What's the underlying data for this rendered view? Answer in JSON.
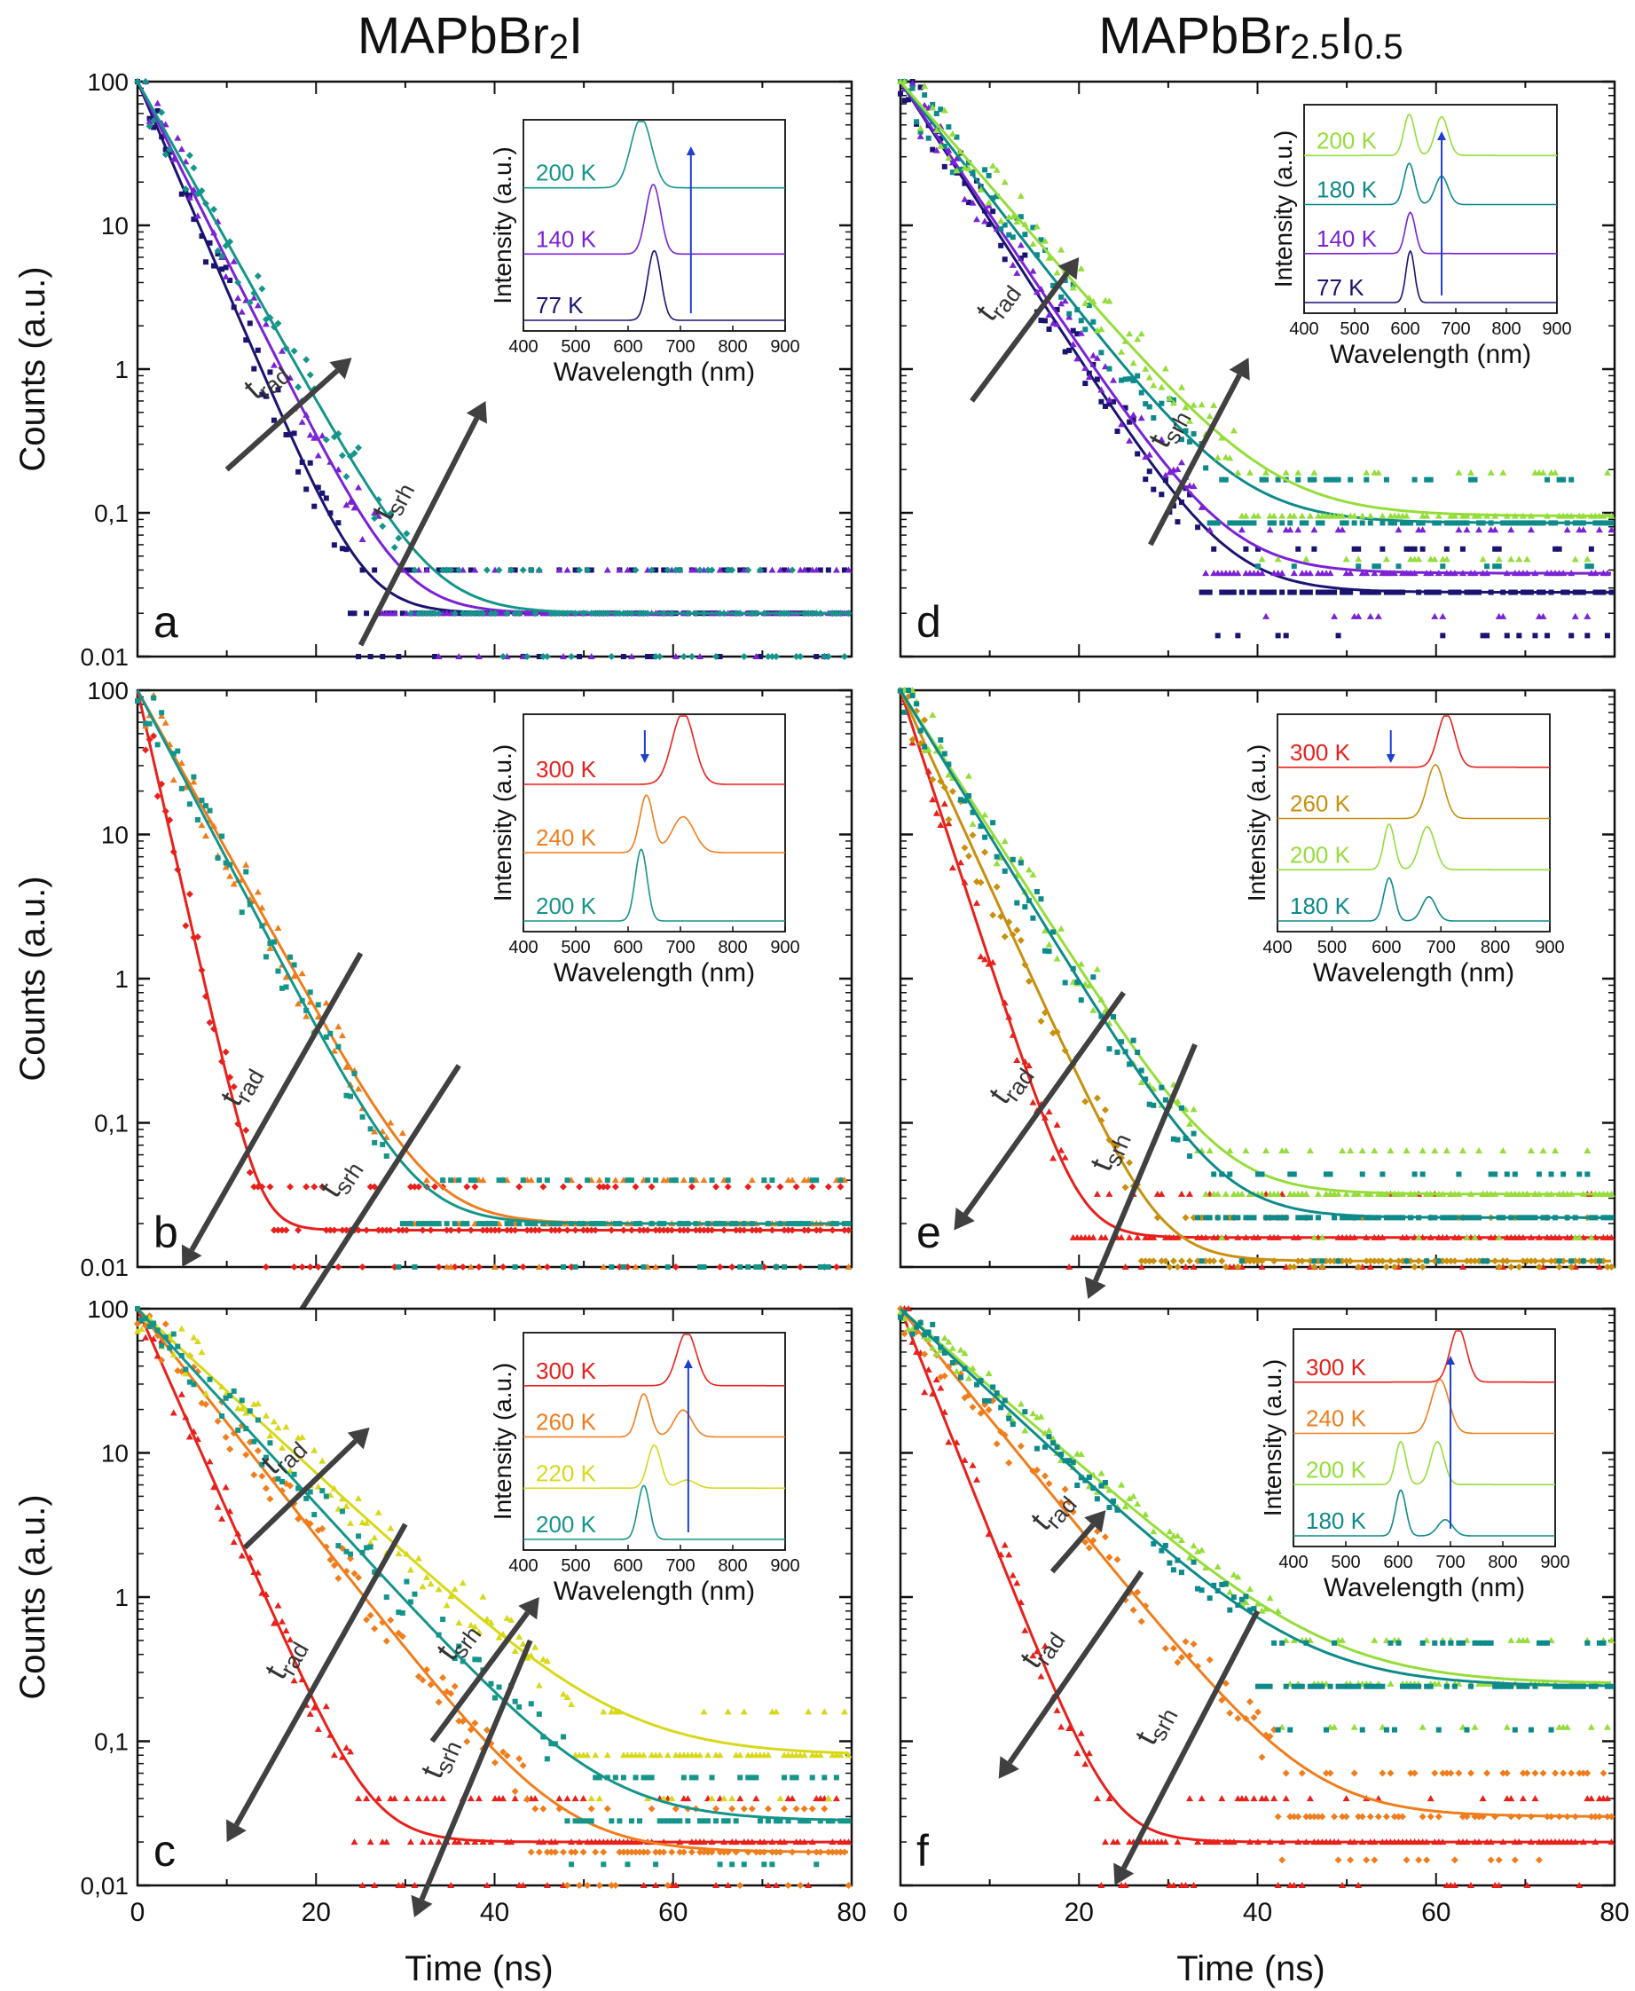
{
  "figure": {
    "col_titles": [
      {
        "main": "MAPbBr",
        "sub1": "2",
        "main2": "I",
        "sub2": ""
      },
      {
        "main": "MAPbBr",
        "sub1": "2.5",
        "main2": "I",
        "sub2": "0.5"
      }
    ],
    "ylabel": "Counts (a.u.)",
    "xlabel": "Time (ns)",
    "xticks": [
      "0",
      "20",
      "40",
      "60",
      "80"
    ]
  },
  "colors": {
    "T77": "#1a1470",
    "T140": "#7a22d4",
    "T180": "#0e8a8a",
    "T200": "#14958a",
    "T200d": "#95dd3a",
    "T220": "#d8d81a",
    "T240": "#f07d1c",
    "T260": "#c8900e",
    "T300": "#e8201c",
    "arrow": "#404040",
    "blue": "#1f3fd0"
  },
  "chart_data": [
    {
      "id": "a",
      "type": "scatter",
      "panel_label": "a",
      "xlim": [
        0,
        80
      ],
      "ylim": [
        0.01,
        100
      ],
      "yscale": "log",
      "yticklabels": [
        "100",
        "10",
        "1",
        "0,1",
        "0.01"
      ],
      "series": [
        {
          "name": "77 K",
          "color": "#1a1470",
          "marker": "square",
          "tau": 3.0,
          "floor": 0.02,
          "noise": 1.8,
          "seed": 11
        },
        {
          "name": "140 K",
          "color": "#7a22d4",
          "marker": "triangle",
          "tau": 3.5,
          "floor": 0.02,
          "noise": 1.8,
          "seed": 12
        },
        {
          "name": "200 K",
          "color": "#14958a",
          "marker": "diamond",
          "tau": 3.9,
          "floor": 0.02,
          "noise": 1.8,
          "seed": 13
        }
      ],
      "arrows": [
        {
          "label": "rad",
          "from": [
            10,
            0.2
          ],
          "to": [
            24,
            1.2
          ]
        },
        {
          "label": "srh",
          "from": [
            25,
            0.012
          ],
          "to": [
            39,
            0.6
          ]
        }
      ],
      "inset": {
        "ylabel": "Intensity (a.u.)",
        "xlabel": "Wavelength (nm)",
        "xticks": [
          "400",
          "500",
          "600",
          "700",
          "800",
          "900"
        ],
        "spectra": [
          {
            "label": "200 K",
            "color": "#14958a",
            "peaks": [
              [
                625,
                28,
                1.0
              ]
            ]
          },
          {
            "label": "140 K",
            "color": "#7a22d4",
            "peaks": [
              [
                648,
                20,
                1.0
              ]
            ]
          },
          {
            "label": "77 K",
            "color": "#1a1470",
            "peaks": [
              [
                650,
                18,
                1.0
              ]
            ]
          }
        ],
        "blue_arrow": {
          "x": 720,
          "dir": "up"
        }
      }
    },
    {
      "id": "d",
      "type": "scatter",
      "panel_label": "d",
      "xlim": [
        0,
        80
      ],
      "ylim": [
        0.01,
        100
      ],
      "yscale": "log",
      "yticklabels": [
        "",
        "",
        "",
        "",
        ""
      ],
      "series": [
        {
          "name": "77 K",
          "color": "#1a1470",
          "marker": "square",
          "tau": 4.5,
          "floor": 0.028,
          "noise": 1.8,
          "seed": 21
        },
        {
          "name": "140 K",
          "color": "#7a22d4",
          "marker": "triangle",
          "tau": 4.7,
          "floor": 0.038,
          "noise": 1.8,
          "seed": 22
        },
        {
          "name": "180 K",
          "color": "#0e8a8a",
          "marker": "square",
          "tau": 5.4,
          "floor": 0.085,
          "noise": 1.8,
          "seed": 23
        },
        {
          "name": "200 K",
          "color": "#95dd3a",
          "marker": "triangle",
          "tau": 6.0,
          "floor": 0.095,
          "noise": 1.8,
          "seed": 24
        }
      ],
      "arrows": [
        {
          "label": "rad",
          "from": [
            8,
            0.6
          ],
          "to": [
            20,
            6
          ]
        },
        {
          "label": "srh",
          "from": [
            28,
            0.06
          ],
          "to": [
            39,
            1.2
          ]
        }
      ],
      "inset": {
        "ylabel": "Intensity (a.u.)",
        "xlabel": "Wavelength (nm)",
        "xticks": [
          "400",
          "500",
          "600",
          "700",
          "800",
          "900"
        ],
        "spectra": [
          {
            "label": "200 K",
            "color": "#95dd3a",
            "peaks": [
              [
                608,
                15,
                0.8
              ],
              [
                672,
                18,
                0.75
              ]
            ]
          },
          {
            "label": "180 K",
            "color": "#0e8a8a",
            "peaks": [
              [
                608,
                15,
                0.8
              ],
              [
                672,
                18,
                0.55
              ]
            ]
          },
          {
            "label": "140 K",
            "color": "#7a22d4",
            "peaks": [
              [
                610,
                14,
                0.8
              ]
            ]
          },
          {
            "label": "77 K",
            "color": "#1a1470",
            "peaks": [
              [
                610,
                12,
                1.0
              ]
            ]
          }
        ],
        "blue_arrow": {
          "x": 672,
          "dir": "up"
        }
      }
    },
    {
      "id": "b",
      "type": "scatter",
      "panel_label": "b",
      "xlim": [
        0,
        80
      ],
      "ylim": [
        0.01,
        100
      ],
      "yscale": "log",
      "yticklabels": [
        "100",
        "10",
        "1",
        "0,1",
        "0.01"
      ],
      "series": [
        {
          "name": "300 K",
          "color": "#e8201c",
          "marker": "diamond",
          "tau": 1.6,
          "floor": 0.018,
          "noise": 1.8,
          "seed": 31
        },
        {
          "name": "240 K",
          "color": "#f07d1c",
          "marker": "triangle",
          "tau": 3.9,
          "floor": 0.02,
          "noise": 1.8,
          "seed": 32
        },
        {
          "name": "200 K",
          "color": "#14958a",
          "marker": "square",
          "tau": 3.7,
          "floor": 0.02,
          "noise": 1.8,
          "seed": 33
        }
      ],
      "arrows": [
        {
          "label": "rad",
          "from": [
            25,
            1.5
          ],
          "to": [
            5,
            0.01
          ]
        },
        {
          "label": "srh",
          "from": [
            36,
            0.25
          ],
          "to": [
            16,
            0.003
          ]
        }
      ],
      "inset": {
        "ylabel": "Intensity (a.u.)",
        "xlabel": "Wavelength (nm)",
        "xticks": [
          "400",
          "500",
          "600",
          "700",
          "800",
          "900"
        ],
        "spectra": [
          {
            "label": "300 K",
            "color": "#e8201c",
            "peaks": [
              [
                705,
                30,
                1.0
              ]
            ]
          },
          {
            "label": "240 K",
            "color": "#f07d1c",
            "peaks": [
              [
                635,
                18,
                0.8
              ],
              [
                705,
                30,
                0.5
              ]
            ]
          },
          {
            "label": "200 K",
            "color": "#14958a",
            "peaks": [
              [
                625,
                16,
                1.0
              ]
            ]
          }
        ],
        "blue_arrow": {
          "x": 632,
          "dir": "down"
        }
      }
    },
    {
      "id": "e",
      "type": "scatter",
      "panel_label": "e",
      "xlim": [
        0,
        80
      ],
      "ylim": [
        0.01,
        100
      ],
      "yscale": "log",
      "yticklabels": [
        "",
        "",
        "",
        "",
        ""
      ],
      "series": [
        {
          "name": "300 K",
          "color": "#e8201c",
          "marker": "triangle",
          "tau": 2.3,
          "floor": 0.016,
          "noise": 1.8,
          "seed": 41
        },
        {
          "name": "260 K",
          "color": "#c8900e",
          "marker": "diamond",
          "tau": 3.2,
          "floor": 0.011,
          "noise": 1.8,
          "seed": 42
        },
        {
          "name": "200 K",
          "color": "#95dd3a",
          "marker": "triangle",
          "tau": 4.5,
          "floor": 0.032,
          "noise": 1.8,
          "seed": 43
        },
        {
          "name": "180 K",
          "color": "#0e8a8a",
          "marker": "square",
          "tau": 4.3,
          "floor": 0.022,
          "noise": 1.8,
          "seed": 44
        }
      ],
      "arrows": [
        {
          "label": "rad",
          "from": [
            25,
            0.8
          ],
          "to": [
            6,
            0.018
          ]
        },
        {
          "label": "srh",
          "from": [
            33,
            0.35
          ],
          "to": [
            21,
            0.006
          ]
        }
      ],
      "inset": {
        "ylabel": "Intensity (a.u.)",
        "xlabel": "Wavelength (nm)",
        "xticks": [
          "400",
          "500",
          "600",
          "700",
          "800",
          "900"
        ],
        "spectra": [
          {
            "label": "300 K",
            "color": "#e8201c",
            "peaks": [
              [
                710,
                22,
                1.0
              ]
            ]
          },
          {
            "label": "260 K",
            "color": "#c8900e",
            "peaks": [
              [
                690,
                22,
                1.0
              ]
            ]
          },
          {
            "label": "200 K",
            "color": "#95dd3a",
            "peaks": [
              [
                605,
                14,
                0.85
              ],
              [
                675,
                20,
                0.8
              ]
            ]
          },
          {
            "label": "180 K",
            "color": "#0e8a8a",
            "peaks": [
              [
                605,
                14,
                0.8
              ],
              [
                678,
                18,
                0.45
              ]
            ]
          }
        ],
        "blue_arrow": {
          "x": 608,
          "dir": "down"
        }
      }
    },
    {
      "id": "c",
      "type": "scatter",
      "panel_label": "c",
      "xlim": [
        0,
        80
      ],
      "ylim": [
        0.01,
        100
      ],
      "yscale": "log",
      "yticklabels": [
        "100",
        "10",
        "1",
        "0,1",
        "0,01"
      ],
      "series": [
        {
          "name": "300 K",
          "color": "#e8201c",
          "marker": "triangle",
          "tau": 3.1,
          "floor": 0.02,
          "noise": 1.8,
          "seed": 51
        },
        {
          "name": "260 K",
          "color": "#f07d1c",
          "marker": "diamond",
          "tau": 5.5,
          "floor": 0.017,
          "noise": 1.7,
          "seed": 52
        },
        {
          "name": "220 K",
          "color": "#d8d81a",
          "marker": "triangle",
          "tau": 7.6,
          "floor": 0.08,
          "noise": 1.7,
          "seed": 53
        },
        {
          "name": "200 K",
          "color": "#14958a",
          "marker": "square",
          "tau": 6.4,
          "floor": 0.028,
          "noise": 1.7,
          "seed": 54
        }
      ],
      "arrows": [
        {
          "label": "rad",
          "from": [
            12,
            2.2
          ],
          "to": [
            26,
            15
          ]
        },
        {
          "label": "rad",
          "from": [
            30,
            3.2
          ],
          "to": [
            10,
            0.02
          ]
        },
        {
          "label": "srh",
          "from": [
            33,
            0.1
          ],
          "to": [
            45,
            1.0
          ]
        },
        {
          "label": "srh",
          "from": [
            44,
            0.5
          ],
          "to": [
            31,
            0.006
          ]
        }
      ],
      "inset": {
        "ylabel": "Intensity (a.u.)",
        "xlabel": "Wavelength (nm)",
        "xticks": [
          "400",
          "500",
          "600",
          "700",
          "800",
          "900"
        ],
        "spectra": [
          {
            "label": "300 K",
            "color": "#e8201c",
            "peaks": [
              [
                712,
                26,
                1.0
              ]
            ]
          },
          {
            "label": "260 K",
            "color": "#f07d1c",
            "peaks": [
              [
                630,
                18,
                0.8
              ],
              [
                705,
                24,
                0.5
              ]
            ]
          },
          {
            "label": "220 K",
            "color": "#d8d81a",
            "peaks": [
              [
                650,
                18,
                0.8
              ],
              [
                712,
                24,
                0.15
              ]
            ]
          },
          {
            "label": "200 K",
            "color": "#14958a",
            "peaks": [
              [
                630,
                16,
                1.0
              ]
            ]
          }
        ],
        "blue_arrow": {
          "x": 715,
          "dir": "up"
        }
      }
    },
    {
      "id": "f",
      "type": "scatter",
      "panel_label": "f",
      "xlim": [
        0,
        80
      ],
      "ylim": [
        0.01,
        100
      ],
      "yscale": "log",
      "yticklabels": [
        "",
        "",
        "",
        "",
        ""
      ],
      "series": [
        {
          "name": "300 K",
          "color": "#e8201c",
          "marker": "triangle",
          "tau": 2.8,
          "floor": 0.02,
          "noise": 1.8,
          "seed": 61
        },
        {
          "name": "240 K",
          "color": "#f07d1c",
          "marker": "diamond",
          "tau": 5.7,
          "floor": 0.03,
          "noise": 1.7,
          "seed": 62
        },
        {
          "name": "200 K",
          "color": "#95dd3a",
          "marker": "triangle",
          "tau": 8.0,
          "floor": 0.25,
          "noise": 1.4,
          "seed": 63
        },
        {
          "name": "180 K",
          "color": "#0e8a8a",
          "marker": "square",
          "tau": 7.5,
          "floor": 0.24,
          "noise": 1.4,
          "seed": 64
        }
      ],
      "arrows": [
        {
          "label": "rad",
          "from": [
            17,
            1.5
          ],
          "to": [
            23,
            4.0
          ]
        },
        {
          "label": "rad",
          "from": [
            27,
            1.5
          ],
          "to": [
            11,
            0.055
          ]
        },
        {
          "label": "srh",
          "from": [
            40,
            0.8
          ],
          "to": [
            24,
            0.01
          ]
        }
      ],
      "inset": {
        "ylabel": "Intensity (a.u.)",
        "xlabel": "Wavelength (nm)",
        "xticks": [
          "400",
          "500",
          "600",
          "700",
          "800",
          "900"
        ],
        "spectra": [
          {
            "label": "300 K",
            "color": "#e8201c",
            "peaks": [
              [
                715,
                22,
                1.0
              ]
            ]
          },
          {
            "label": "240 K",
            "color": "#f07d1c",
            "peaks": [
              [
                680,
                24,
                1.0
              ]
            ]
          },
          {
            "label": "200 K",
            "color": "#95dd3a",
            "peaks": [
              [
                605,
                14,
                0.8
              ],
              [
                675,
                18,
                0.8
              ]
            ]
          },
          {
            "label": "180 K",
            "color": "#0e8a8a",
            "peaks": [
              [
                605,
                14,
                0.85
              ],
              [
                690,
                20,
                0.3
              ]
            ]
          }
        ],
        "blue_arrow": {
          "x": 700,
          "dir": "up"
        }
      }
    }
  ]
}
